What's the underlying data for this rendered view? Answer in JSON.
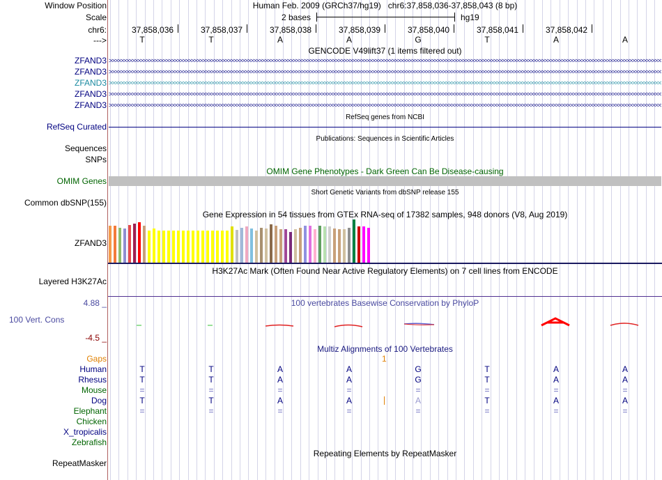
{
  "header": {
    "window_position_label": "Window Position",
    "scale_label": "Scale",
    "chr_label": "chr6:",
    "arrow_label": "--->",
    "assembly_title": "Human Feb. 2009 (GRCh37/hg19)   chr6:37,858,036-37,858,043 (8 bp)",
    "scale_text": "2 bases",
    "scale_db": "hg19",
    "positions": [
      "37,858,036",
      "37,858,037",
      "37,858,038",
      "37,858,039",
      "37,858,040",
      "37,858,041",
      "37,858,042"
    ],
    "bases": [
      "T",
      "T",
      "A",
      "A",
      "G",
      "T",
      "A",
      "A"
    ]
  },
  "tracks": {
    "gencode": {
      "title": "GENCODE V49lift37 (1 items filtered out)",
      "genes": [
        "ZFAND3",
        "ZFAND3",
        "ZFAND3",
        "ZFAND3",
        "ZFAND3"
      ]
    },
    "refseq": {
      "title": "RefSeq genes from NCBI",
      "label": "RefSeq Curated"
    },
    "publications": {
      "title": "Publications: Sequences in Scientific Articles",
      "sequences_label": "Sequences",
      "snps_label": "SNPs"
    },
    "omim": {
      "title": "OMIM Gene Phenotypes - Dark Green Can Be Disease-causing",
      "label": "OMIM Genes"
    },
    "dbsnp": {
      "title": "Short Genetic Variants from dbSNP release 155",
      "label": "Common dbSNP(155)"
    },
    "gtex": {
      "title": "Gene Expression in 54 tissues from GTEx RNA-seq of 17382 samples, 948 donors (V8, Aug 2019)",
      "label": "ZFAND3",
      "chart_data": {
        "type": "bar",
        "ylim": [
          0,
          1
        ],
        "values": [
          0.88,
          0.88,
          0.84,
          0.82,
          0.9,
          0.93,
          0.97,
          0.88,
          0.76,
          0.82,
          0.76,
          0.76,
          0.76,
          0.76,
          0.76,
          0.76,
          0.76,
          0.76,
          0.76,
          0.76,
          0.76,
          0.76,
          0.76,
          0.76,
          0.76,
          0.87,
          0.78,
          0.83,
          0.86,
          0.82,
          0.76,
          0.84,
          0.82,
          0.91,
          0.88,
          0.8,
          0.8,
          0.74,
          0.8,
          0.84,
          0.88,
          0.88,
          0.8,
          0.88,
          0.86,
          0.86,
          0.82,
          0.8,
          0.8,
          0.84,
          1.03,
          0.86,
          0.86,
          0.84
        ],
        "colors": [
          "#f49a4a",
          "#f47a3a",
          "#8fbc6b",
          "#8f8fd0",
          "#e64a4a",
          "#a02050",
          "#ff0000",
          "#c8a07a",
          "#ffff00",
          "#ffff00",
          "#ffff00",
          "#ffff00",
          "#ffff00",
          "#ffff00",
          "#ffff00",
          "#ffff00",
          "#ffff00",
          "#ffff00",
          "#ffff00",
          "#ffff00",
          "#ffff00",
          "#ffff00",
          "#ffff00",
          "#ffff00",
          "#ffff00",
          "#e0e000",
          "#c0c0c0",
          "#a0b8d8",
          "#f0a8c0",
          "#80c0e0",
          "#d0c0a0",
          "#a89070",
          "#d0c0a0",
          "#8a6a4a",
          "#c8a07a",
          "#c8a07a",
          "#a04898",
          "#7a2a7a",
          "#d0c0a0",
          "#c8a07a",
          "#9090e0",
          "#e070e0",
          "#ffb0d0",
          "#60a060",
          "#b8e0b0",
          "#d0d0d0",
          "#c8a07a",
          "#c8a07a",
          "#d0c0a0",
          "#909090",
          "#008040",
          "#cc0000",
          "#ff00ff",
          "#ff00ff"
        ]
      }
    },
    "h3k27ac": {
      "title": "H3K27Ac Mark (Often Found Near Active Regulatory Elements) on 7 cell lines from ENCODE",
      "label": "Layered H3K27Ac"
    },
    "phylop": {
      "title": "100 vertebrates Basewise Conservation by PhyloP",
      "label": "100 Vert. Cons",
      "max": "4.88 _",
      "min": "-4.5 _"
    },
    "multiz": {
      "title": "Multiz Alignments of 100 Vertebrates",
      "gaps_label": "Gaps",
      "gaps_value": "1",
      "species": [
        "Human",
        "Rhesus",
        "Mouse",
        "Dog",
        "Elephant",
        "Chicken",
        "X_tropicalis",
        "Zebrafish"
      ],
      "human": [
        "T",
        "T",
        "A",
        "A",
        "G",
        "T",
        "A",
        "A"
      ],
      "rhesus": [
        "T",
        "T",
        "A",
        "A",
        "G",
        "T",
        "A",
        "A"
      ],
      "mouse": [
        "=",
        "=",
        "=",
        "=",
        "=",
        "=",
        "=",
        "="
      ],
      "dog": [
        "T",
        "T",
        "A",
        "A",
        "A",
        "T",
        "A",
        "A"
      ],
      "elephant": [
        "=",
        "=",
        "=",
        "=",
        "=",
        "=",
        "=",
        "="
      ]
    },
    "repeatmasker": {
      "title": "Repeating Elements by RepeatMasker",
      "label": "RepeatMasker"
    }
  },
  "colors": {
    "navy": "#000080",
    "blue": "#1a1a80",
    "green": "#006400",
    "orange": "#e08000",
    "cons": "#4a4aa0"
  }
}
